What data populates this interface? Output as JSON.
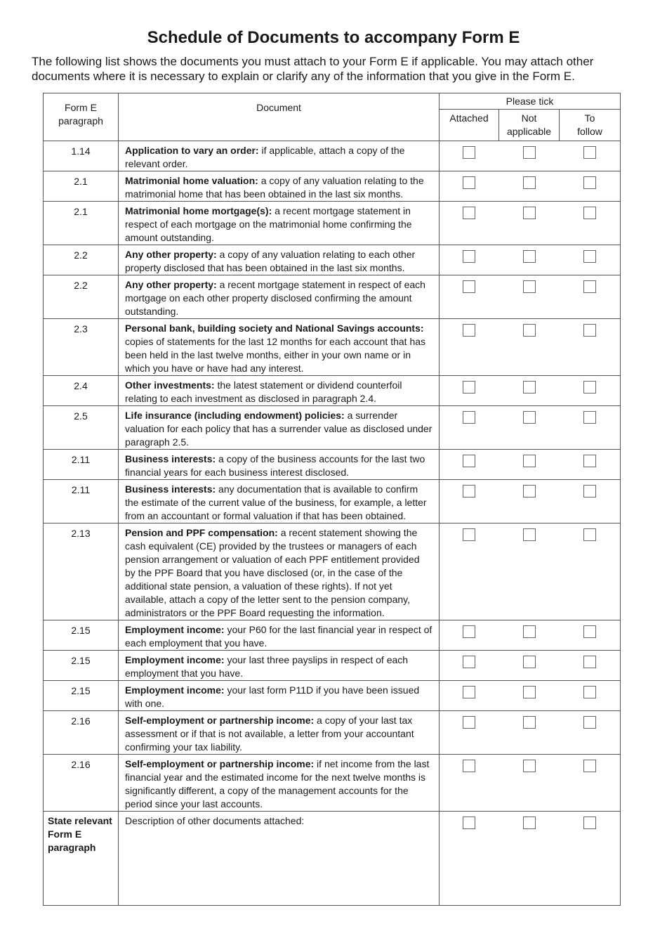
{
  "title": "Schedule of Documents to accompany Form E",
  "intro": "The following list shows the documents you must attach to your Form E if applicable. You may attach other documents where it is necessary to explain or clarify any of the information that you give in the Form E.",
  "headers": {
    "paragraph": "Form E paragraph",
    "document": "Document",
    "please_tick": "Please tick",
    "attached": "Attached",
    "not_applicable": "Not applicable",
    "to_follow": "To follow"
  },
  "rows": [
    {
      "para": "1.14",
      "bold": "Application to vary an order:",
      "text": " if applicable, attach a copy of the relevant order."
    },
    {
      "para": "2.1",
      "bold": "Matrimonial home valuation:",
      "text": " a copy of any valuation relating to the matrimonial home that has been obtained in the last six months."
    },
    {
      "para": "2.1",
      "bold": "Matrimonial home mortgage(s):",
      "text": " a recent mortgage statement in respect of each mortgage on the matrimonial home confirming the amount outstanding."
    },
    {
      "para": "2.2",
      "bold": "Any other property:",
      "text": " a copy of any valuation relating to each other property disclosed that has been obtained in the last six months."
    },
    {
      "para": "2.2",
      "bold": "Any other property:",
      "text": " a recent mortgage statement in respect of each mortgage on each other property disclosed confirming the amount outstanding."
    },
    {
      "para": "2.3",
      "bold": "Personal bank, building society and National Savings accounts:",
      "text": " copies of statements for the last 12 months for each account that has been held in the last twelve months, either in your own name or in which you have or have had any interest."
    },
    {
      "para": "2.4",
      "bold": "Other investments:",
      "text": " the latest statement or dividend counterfoil relating to each investment as disclosed in paragraph 2.4."
    },
    {
      "para": "2.5",
      "bold": "Life insurance (including endowment) policies:",
      "text": " a surrender valuation for each policy that has a surrender value as disclosed under paragraph 2.5."
    },
    {
      "para": "2.11",
      "bold": "Business interests:",
      "text": " a copy of the business accounts for the last two financial years for each business interest disclosed."
    },
    {
      "para": "2.11",
      "bold": "Business interests:",
      "text": " any documentation that is available to confirm the estimate of the current value of the business, for example, a letter from an accountant or formal valuation if that has been obtained."
    },
    {
      "para": "2.13",
      "bold": "Pension and PPF compensation:",
      "text": " a recent statement showing the cash equivalent (CE) provided by the trustees or managers of each pension arrangement or valuation of each PPF entitlement provided by the PPF Board that you have disclosed (or, in the case of the additional state pension, a valuation of these rights). If not yet available, attach a copy of the letter sent to the pension company, administrators or the PPF Board requesting the information."
    },
    {
      "para": "2.15",
      "bold": "Employment income:",
      "text": " your P60 for the last financial year in respect of each employment that you have."
    },
    {
      "para": "2.15",
      "bold": "Employment income:",
      "text": " your last three payslips in respect of each employment that you have."
    },
    {
      "para": "2.15",
      "bold": "Employment income:",
      "text": " your last form P11D if you have been issued with one."
    },
    {
      "para": "2.16",
      "bold": "Self-employment or partnership income:",
      "text": " a copy of your last tax assessment or if that is not available, a letter from your accountant confirming your tax liability."
    },
    {
      "para": "2.16",
      "bold": "Self-employment or partnership income:",
      "text": " if net income from the last financial year and the estimated income for the next twelve months is significantly different, a copy of the management accounts for the period since your last accounts."
    }
  ],
  "last_row": {
    "para": "State relevant Form E paragraph",
    "text": "Description of other documents attached:"
  }
}
